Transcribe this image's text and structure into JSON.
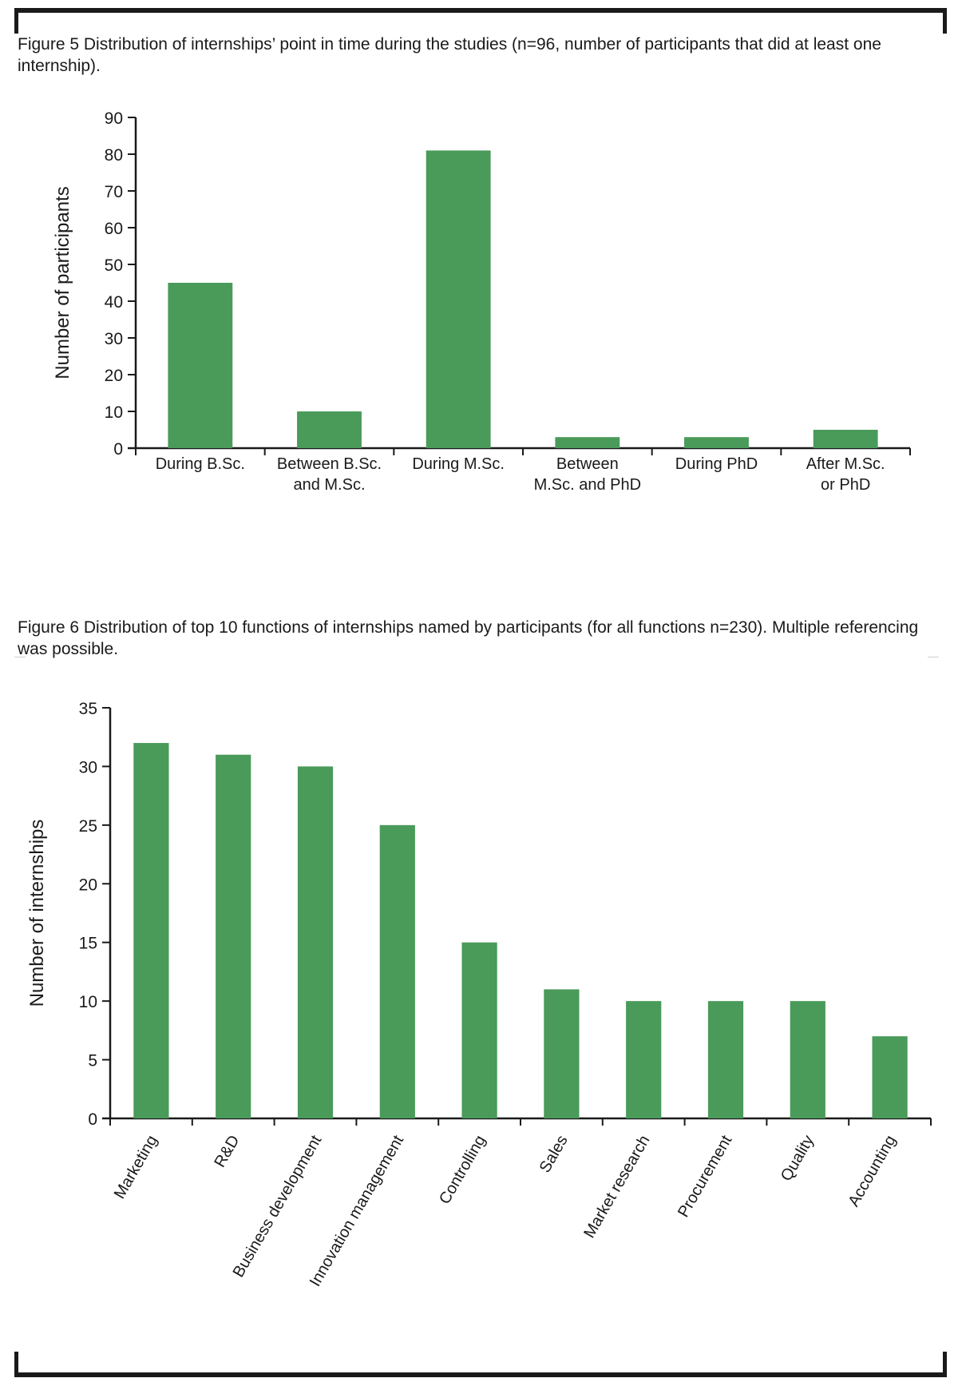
{
  "bar_color": "#4a9a5a",
  "axis_color": "#1a1a1a",
  "chart_data": [
    {
      "type": "bar",
      "title_label": "Figure 5",
      "title": "Distribution of internships’ point in time during the studies (n=96, number of participants that did at least one internship).",
      "ylabel": "Number of participants",
      "xlabel": "",
      "ylim": [
        0,
        90
      ],
      "yticks": [
        0,
        10,
        20,
        30,
        40,
        50,
        60,
        70,
        80,
        90
      ],
      "categories": [
        [
          "During B.Sc."
        ],
        [
          "Between B.Sc.",
          "and M.Sc."
        ],
        [
          "During M.Sc."
        ],
        [
          "Between",
          "M.Sc. and PhD"
        ],
        [
          "During PhD"
        ],
        [
          "After M.Sc.",
          "or PhD"
        ]
      ],
      "values": [
        45,
        10,
        81,
        3,
        3,
        5
      ],
      "grid": false,
      "legend": "none"
    },
    {
      "type": "bar",
      "title_label": "Figure 6",
      "title": "Distribution of top 10 functions of internships named by participants (for all functions n=230). Multiple referencing was possible.",
      "ylabel": "Number of internships",
      "xlabel": "",
      "ylim": [
        0,
        35
      ],
      "yticks": [
        0,
        5,
        10,
        15,
        20,
        25,
        30,
        35
      ],
      "categories": [
        "Marketing",
        "R&D",
        "Business development",
        "Innovation management",
        "Controlling",
        "Sales",
        "Market research",
        "Procurement",
        "Quality",
        "Accounting"
      ],
      "values": [
        32,
        31,
        30,
        25,
        15,
        11,
        10,
        10,
        10,
        7
      ],
      "grid": false,
      "legend": "none"
    }
  ]
}
